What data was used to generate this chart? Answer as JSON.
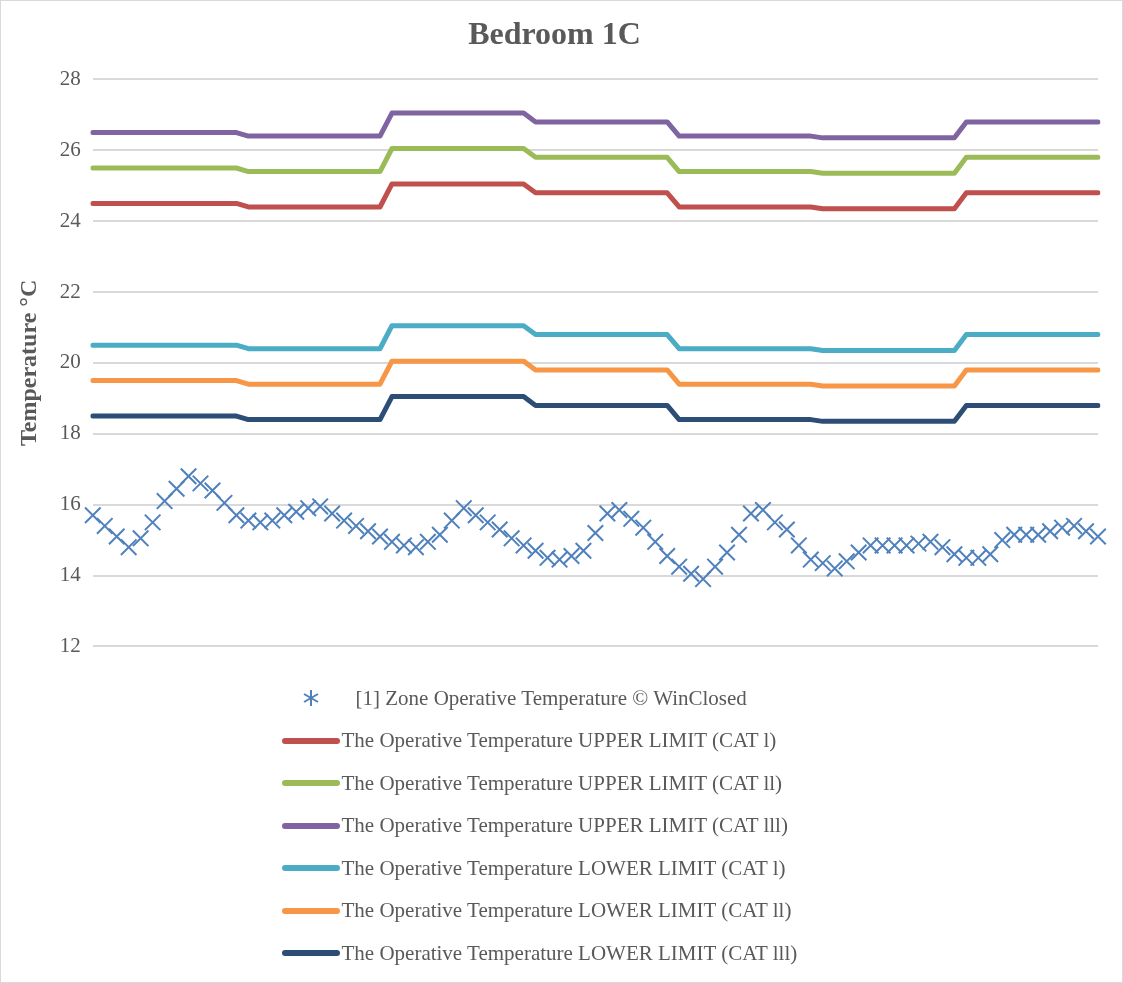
{
  "chart_data": {
    "type": "line",
    "title": "Bedroom 1C",
    "ylabel": "Temperature °C",
    "categories": [
      null,
      null,
      null,
      null,
      null,
      null,
      null,
      null,
      null,
      null,
      null,
      null,
      null,
      null,
      null,
      null,
      null,
      null,
      null,
      null,
      null,
      null,
      null,
      null,
      null,
      null,
      null,
      null,
      null,
      null,
      null,
      null,
      null,
      null,
      null,
      null,
      null,
      null,
      null,
      null,
      null,
      null,
      null,
      null,
      null,
      null,
      null,
      null,
      null,
      null,
      null,
      null,
      null,
      null,
      null,
      null,
      null,
      null,
      null,
      null,
      null,
      null,
      null,
      null,
      null,
      null,
      null,
      null,
      null,
      null,
      null,
      null,
      null,
      null,
      null,
      null,
      null,
      null,
      null,
      null,
      null,
      null,
      null,
      null,
      null
    ],
    "ylim": [
      12,
      28
    ],
    "yticks": [
      12,
      14,
      16,
      18,
      20,
      22,
      24,
      26,
      28
    ],
    "tick_labels": "y",
    "grid": "y",
    "legend": "bottom",
    "line_style": "solid",
    "series": [
      {
        "name": "[1] Zone Operative Temperature © WinClosed",
        "type": "scatter",
        "marker": "cross",
        "color": "#4f81bd",
        "values": [
          15.7,
          15.4,
          15.1,
          14.8,
          15.05,
          15.5,
          16.1,
          16.45,
          16.8,
          16.6,
          16.4,
          16.05,
          15.7,
          15.55,
          15.5,
          15.55,
          15.7,
          15.8,
          15.9,
          15.95,
          15.75,
          15.55,
          15.4,
          15.25,
          15.1,
          14.95,
          14.85,
          14.8,
          14.95,
          15.15,
          15.55,
          15.9,
          15.7,
          15.5,
          15.3,
          15.05,
          14.85,
          14.7,
          14.5,
          14.45,
          14.55,
          14.7,
          15.2,
          15.75,
          15.85,
          15.6,
          15.35,
          14.95,
          14.55,
          14.25,
          14.05,
          13.9,
          14.25,
          14.65,
          15.15,
          15.75,
          15.85,
          15.5,
          15.3,
          14.85,
          14.45,
          14.35,
          14.2,
          14.4,
          14.65,
          14.85,
          14.85,
          14.85,
          14.85,
          14.9,
          14.95,
          14.8,
          14.6,
          14.5,
          14.5,
          14.6,
          15.0,
          15.15,
          15.15,
          15.15,
          15.25,
          15.35,
          15.4,
          15.25,
          15.1
        ]
      },
      {
        "name": "The Operative Temperature UPPER LIMIT (CAT l)",
        "color": "#c0504d",
        "values": [
          24.5,
          24.5,
          24.5,
          24.5,
          24.5,
          24.5,
          24.5,
          24.5,
          24.5,
          24.5,
          24.5,
          24.5,
          24.5,
          24.4,
          24.4,
          24.4,
          24.4,
          24.4,
          24.4,
          24.4,
          24.4,
          24.4,
          24.4,
          24.4,
          24.4,
          25.05,
          25.05,
          25.05,
          25.05,
          25.05,
          25.05,
          25.05,
          25.05,
          25.05,
          25.05,
          25.05,
          25.05,
          24.8,
          24.8,
          24.8,
          24.8,
          24.8,
          24.8,
          24.8,
          24.8,
          24.8,
          24.8,
          24.8,
          24.8,
          24.4,
          24.4,
          24.4,
          24.4,
          24.4,
          24.4,
          24.4,
          24.4,
          24.4,
          24.4,
          24.4,
          24.4,
          24.35,
          24.35,
          24.35,
          24.35,
          24.35,
          24.35,
          24.35,
          24.35,
          24.35,
          24.35,
          24.35,
          24.35,
          24.8,
          24.8,
          24.8,
          24.8,
          24.8,
          24.8,
          24.8,
          24.8,
          24.8,
          24.8,
          24.8,
          24.8
        ]
      },
      {
        "name": "The Operative Temperature UPPER LIMIT (CAT ll)",
        "color": "#9bbb59",
        "values": [
          25.5,
          25.5,
          25.5,
          25.5,
          25.5,
          25.5,
          25.5,
          25.5,
          25.5,
          25.5,
          25.5,
          25.5,
          25.5,
          25.4,
          25.4,
          25.4,
          25.4,
          25.4,
          25.4,
          25.4,
          25.4,
          25.4,
          25.4,
          25.4,
          25.4,
          26.05,
          26.05,
          26.05,
          26.05,
          26.05,
          26.05,
          26.05,
          26.05,
          26.05,
          26.05,
          26.05,
          26.05,
          25.8,
          25.8,
          25.8,
          25.8,
          25.8,
          25.8,
          25.8,
          25.8,
          25.8,
          25.8,
          25.8,
          25.8,
          25.4,
          25.4,
          25.4,
          25.4,
          25.4,
          25.4,
          25.4,
          25.4,
          25.4,
          25.4,
          25.4,
          25.4,
          25.35,
          25.35,
          25.35,
          25.35,
          25.35,
          25.35,
          25.35,
          25.35,
          25.35,
          25.35,
          25.35,
          25.35,
          25.8,
          25.8,
          25.8,
          25.8,
          25.8,
          25.8,
          25.8,
          25.8,
          25.8,
          25.8,
          25.8,
          25.8
        ]
      },
      {
        "name": "The Operative Temperature UPPER LIMIT (CAT lll)",
        "color": "#8064a2",
        "values": [
          26.5,
          26.5,
          26.5,
          26.5,
          26.5,
          26.5,
          26.5,
          26.5,
          26.5,
          26.5,
          26.5,
          26.5,
          26.5,
          26.4,
          26.4,
          26.4,
          26.4,
          26.4,
          26.4,
          26.4,
          26.4,
          26.4,
          26.4,
          26.4,
          26.4,
          27.05,
          27.05,
          27.05,
          27.05,
          27.05,
          27.05,
          27.05,
          27.05,
          27.05,
          27.05,
          27.05,
          27.05,
          26.8,
          26.8,
          26.8,
          26.8,
          26.8,
          26.8,
          26.8,
          26.8,
          26.8,
          26.8,
          26.8,
          26.8,
          26.4,
          26.4,
          26.4,
          26.4,
          26.4,
          26.4,
          26.4,
          26.4,
          26.4,
          26.4,
          26.4,
          26.4,
          26.35,
          26.35,
          26.35,
          26.35,
          26.35,
          26.35,
          26.35,
          26.35,
          26.35,
          26.35,
          26.35,
          26.35,
          26.8,
          26.8,
          26.8,
          26.8,
          26.8,
          26.8,
          26.8,
          26.8,
          26.8,
          26.8,
          26.8,
          26.8
        ]
      },
      {
        "name": "The Operative Temperature LOWER LIMIT (CAT l)",
        "color": "#4bacc6",
        "values": [
          20.5,
          20.5,
          20.5,
          20.5,
          20.5,
          20.5,
          20.5,
          20.5,
          20.5,
          20.5,
          20.5,
          20.5,
          20.5,
          20.4,
          20.4,
          20.4,
          20.4,
          20.4,
          20.4,
          20.4,
          20.4,
          20.4,
          20.4,
          20.4,
          20.4,
          21.05,
          21.05,
          21.05,
          21.05,
          21.05,
          21.05,
          21.05,
          21.05,
          21.05,
          21.05,
          21.05,
          21.05,
          20.8,
          20.8,
          20.8,
          20.8,
          20.8,
          20.8,
          20.8,
          20.8,
          20.8,
          20.8,
          20.8,
          20.8,
          20.4,
          20.4,
          20.4,
          20.4,
          20.4,
          20.4,
          20.4,
          20.4,
          20.4,
          20.4,
          20.4,
          20.4,
          20.35,
          20.35,
          20.35,
          20.35,
          20.35,
          20.35,
          20.35,
          20.35,
          20.35,
          20.35,
          20.35,
          20.35,
          20.8,
          20.8,
          20.8,
          20.8,
          20.8,
          20.8,
          20.8,
          20.8,
          20.8,
          20.8,
          20.8,
          20.8
        ]
      },
      {
        "name": "The Operative Temperature LOWER LIMIT (CAT ll)",
        "color": "#f79646",
        "values": [
          19.5,
          19.5,
          19.5,
          19.5,
          19.5,
          19.5,
          19.5,
          19.5,
          19.5,
          19.5,
          19.5,
          19.5,
          19.5,
          19.4,
          19.4,
          19.4,
          19.4,
          19.4,
          19.4,
          19.4,
          19.4,
          19.4,
          19.4,
          19.4,
          19.4,
          20.05,
          20.05,
          20.05,
          20.05,
          20.05,
          20.05,
          20.05,
          20.05,
          20.05,
          20.05,
          20.05,
          20.05,
          19.8,
          19.8,
          19.8,
          19.8,
          19.8,
          19.8,
          19.8,
          19.8,
          19.8,
          19.8,
          19.8,
          19.8,
          19.4,
          19.4,
          19.4,
          19.4,
          19.4,
          19.4,
          19.4,
          19.4,
          19.4,
          19.4,
          19.4,
          19.4,
          19.35,
          19.35,
          19.35,
          19.35,
          19.35,
          19.35,
          19.35,
          19.35,
          19.35,
          19.35,
          19.35,
          19.35,
          19.8,
          19.8,
          19.8,
          19.8,
          19.8,
          19.8,
          19.8,
          19.8,
          19.8,
          19.8,
          19.8,
          19.8
        ]
      },
      {
        "name": "The Operative Temperature LOWER LIMIT (CAT lll)",
        "color": "#2c4d75",
        "values": [
          18.5,
          18.5,
          18.5,
          18.5,
          18.5,
          18.5,
          18.5,
          18.5,
          18.5,
          18.5,
          18.5,
          18.5,
          18.5,
          18.4,
          18.4,
          18.4,
          18.4,
          18.4,
          18.4,
          18.4,
          18.4,
          18.4,
          18.4,
          18.4,
          18.4,
          19.05,
          19.05,
          19.05,
          19.05,
          19.05,
          19.05,
          19.05,
          19.05,
          19.05,
          19.05,
          19.05,
          19.05,
          18.8,
          18.8,
          18.8,
          18.8,
          18.8,
          18.8,
          18.8,
          18.8,
          18.8,
          18.8,
          18.8,
          18.8,
          18.4,
          18.4,
          18.4,
          18.4,
          18.4,
          18.4,
          18.4,
          18.4,
          18.4,
          18.4,
          18.4,
          18.4,
          18.35,
          18.35,
          18.35,
          18.35,
          18.35,
          18.35,
          18.35,
          18.35,
          18.35,
          18.35,
          18.35,
          18.35,
          18.8,
          18.8,
          18.8,
          18.8,
          18.8,
          18.8,
          18.8,
          18.8,
          18.8,
          18.8,
          18.8,
          18.8
        ]
      }
    ]
  }
}
